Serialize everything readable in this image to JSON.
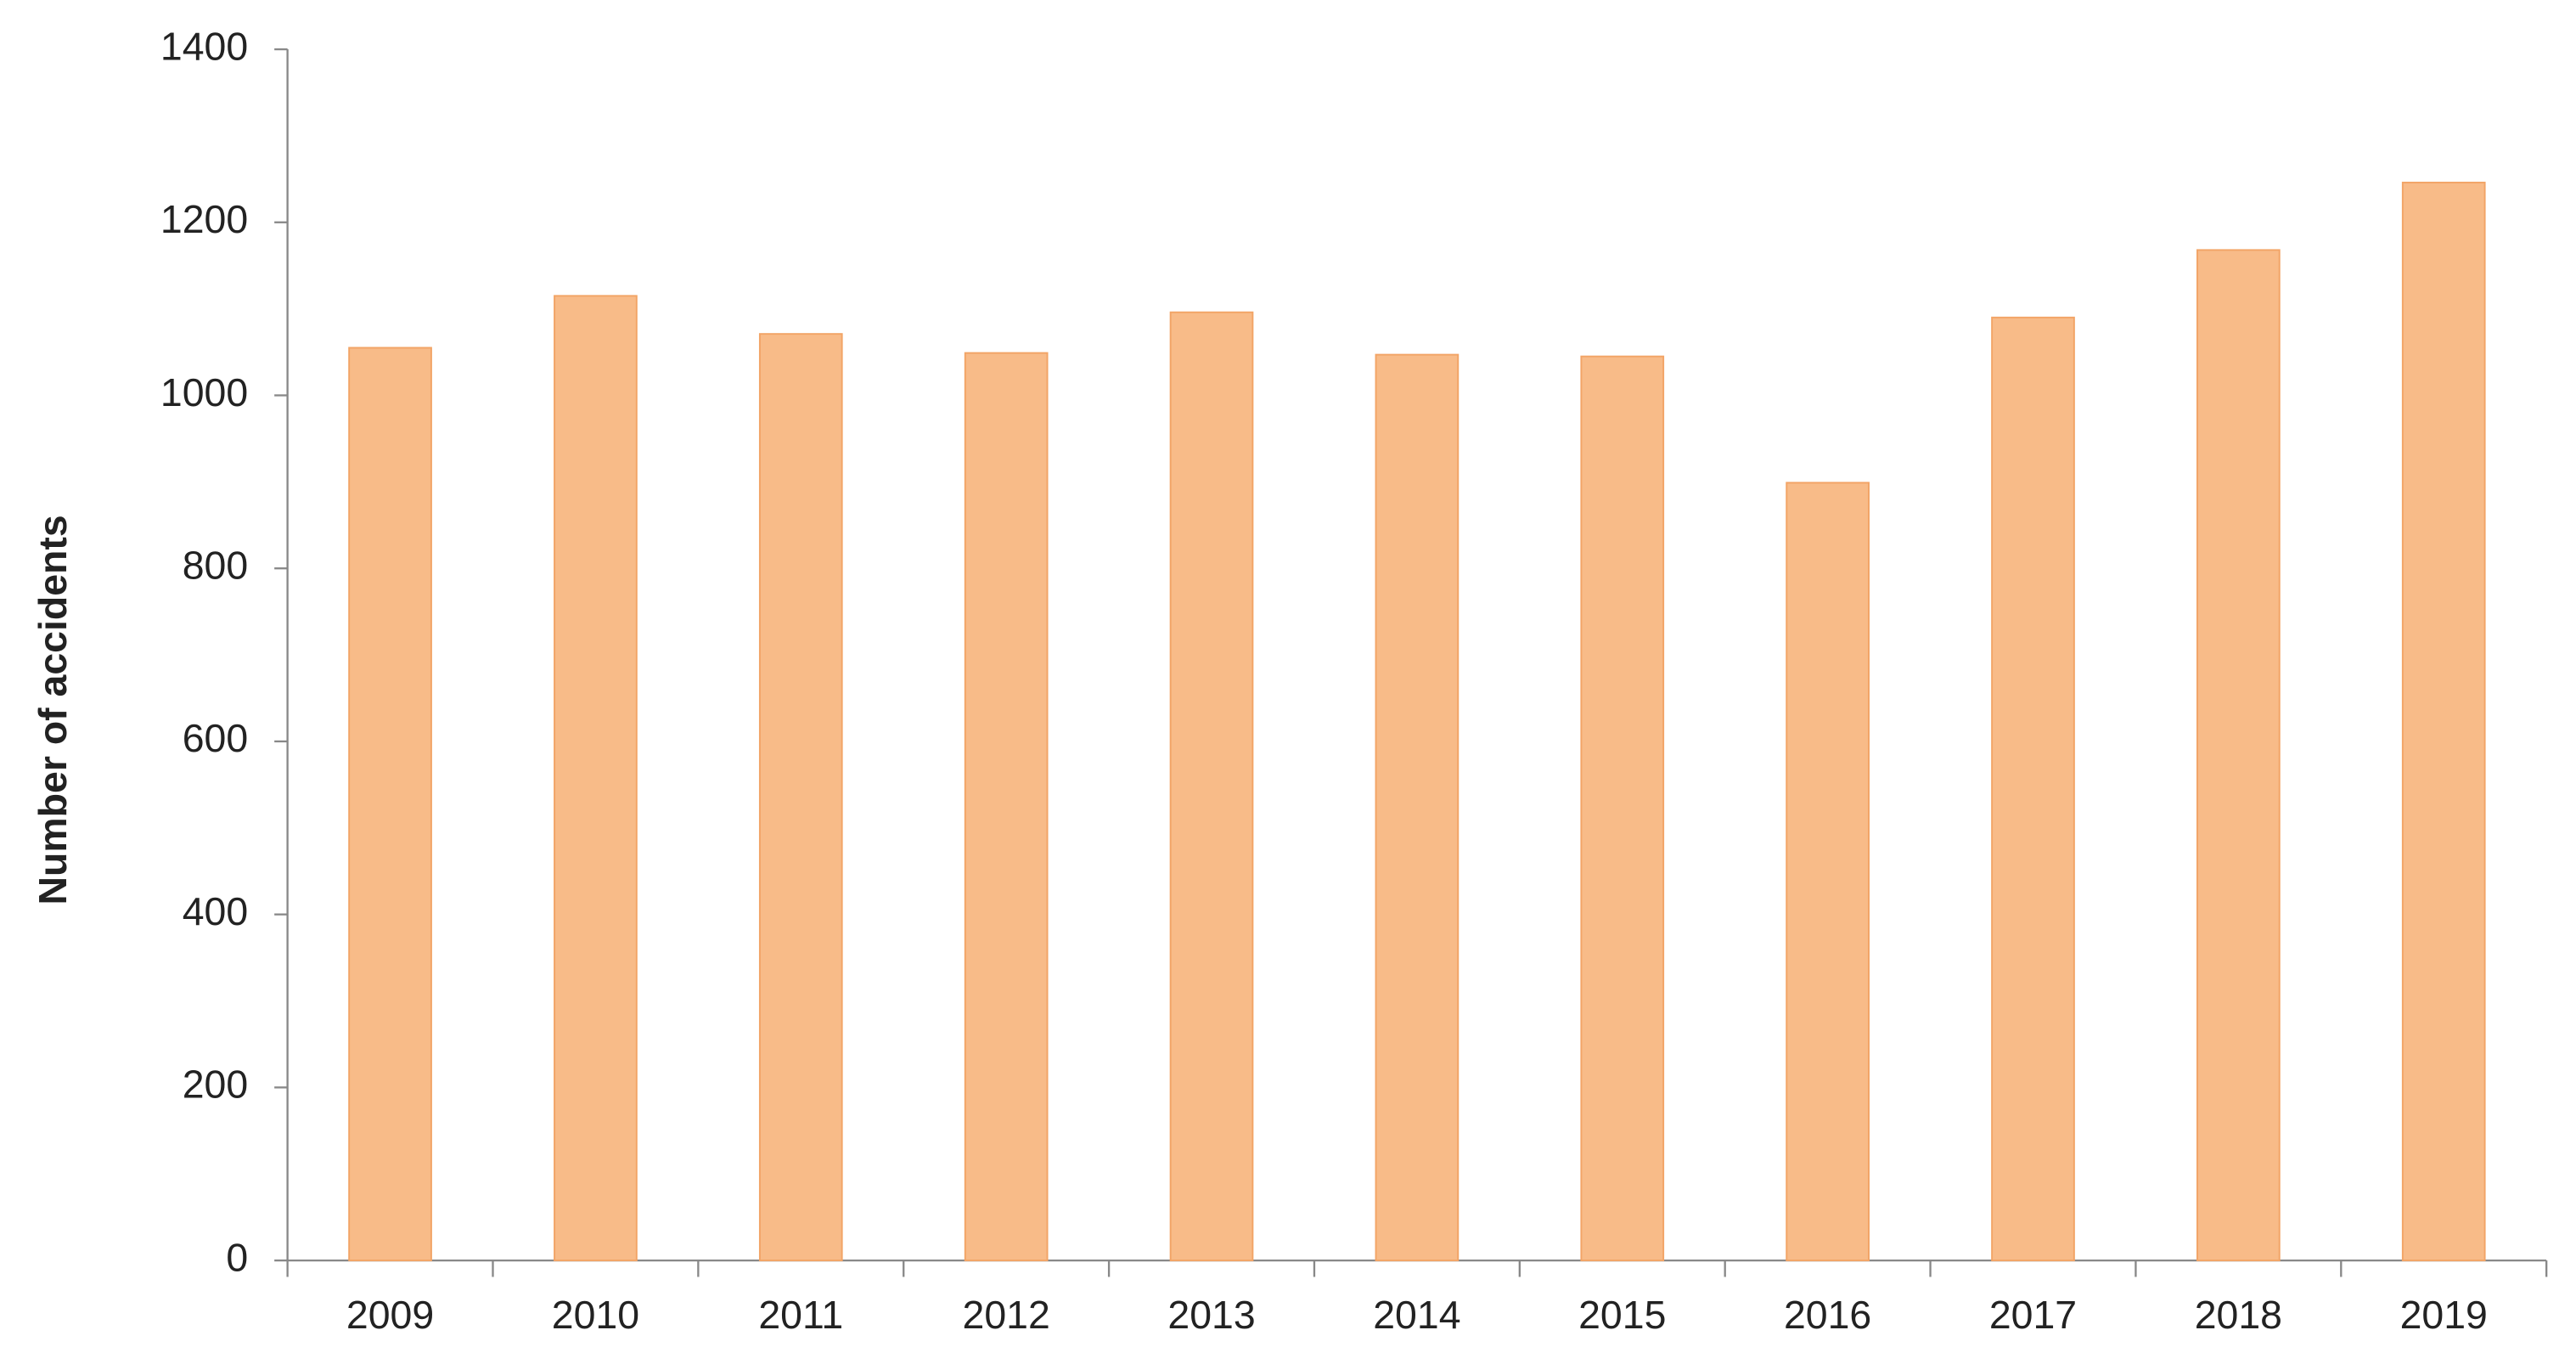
{
  "chart_data": {
    "type": "bar",
    "y_label": "Number of accidents",
    "categories": [
      "2009",
      "2010",
      "2011",
      "2012",
      "2013",
      "2014",
      "2015",
      "2016",
      "2017",
      "2018",
      "2019"
    ],
    "values": [
      1055,
      1115,
      1071,
      1049,
      1096,
      1047,
      1045,
      899,
      1090,
      1168,
      1246
    ],
    "color": "#f8bb88",
    "ylim": [
      0,
      1400
    ],
    "yticks": [
      0,
      200,
      400,
      600,
      800,
      1000,
      1200,
      1400
    ],
    "grid": false
  }
}
